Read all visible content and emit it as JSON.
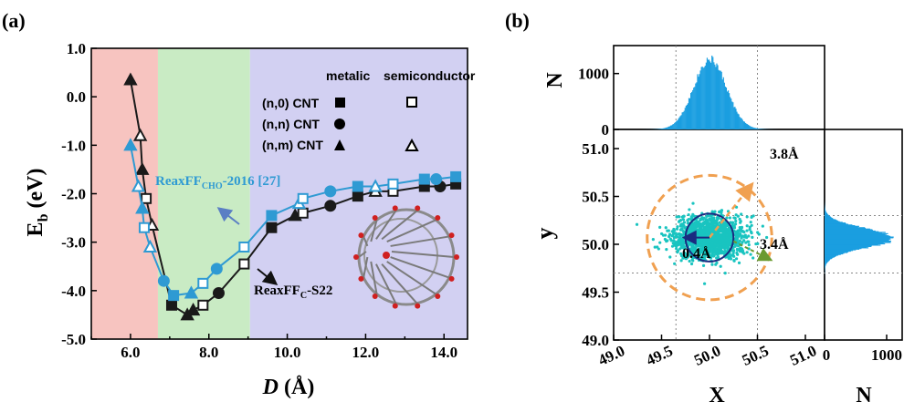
{
  "panel_a": {
    "tag": "(a)",
    "ylabel_main": "E",
    "ylabel_sub": "b",
    "ylabel_unit": " (eV)",
    "xlabel_italic": "D",
    "xlabel_unit": " (Å)",
    "legend": {
      "col_metallic": "metalic",
      "col_semiconductor": "semiconductor",
      "rows": [
        "(n,0) CNT",
        "(n,n) CNT",
        "(n,m) CNT"
      ]
    },
    "annotations": {
      "cho_main": "ReaxFF",
      "cho_sub": "CHO",
      "cho_rest": "-2016 [27]",
      "c_main": "ReaxFF",
      "c_sub": "C",
      "c_rest": "-S22"
    },
    "colors": {
      "region_red": "#f7c4c0",
      "region_green": "#c9ebc4",
      "region_blue": "#d2d0f2",
      "cho_series": "#2f9ad3",
      "c_series": "#1a1a1a",
      "cho_arrow": "#5b7fc4"
    }
  },
  "panel_b": {
    "tag": "(b)",
    "top_ylabel": "N",
    "main_ylabel": "y",
    "main_xlabel": "X",
    "right_xlabel": "N",
    "annotations": {
      "r_outer": "3.8Å",
      "r_inner": "0.4Å",
      "r_mid": "3.4Å"
    },
    "colors": {
      "scatter": "#19c4c0",
      "histogram": "#1a9ee0",
      "outer_circle": "#f0a050",
      "inner_circle": "#1a2a80",
      "green_arrow": "#6a9a30"
    }
  },
  "chart_data": [
    {
      "type": "line",
      "title": "",
      "xlabel": "D (Å)",
      "ylabel": "Eb (eV)",
      "xlim": [
        5.0,
        14.6
      ],
      "ylim": [
        -5.0,
        1.0
      ],
      "xticks": [
        "6.0",
        "8.0",
        "10.0",
        "12.0",
        "14.0"
      ],
      "yticks": [
        "1.0",
        "0.0",
        "-1.0",
        "-2.0",
        "-3.0",
        "-4.0",
        "-5.0"
      ],
      "regions": [
        {
          "x_from": 5.0,
          "x_to": 6.7,
          "color": "red"
        },
        {
          "x_from": 6.7,
          "x_to": 9.05,
          "color": "green"
        },
        {
          "x_from": 9.05,
          "x_to": 14.6,
          "color": "blue"
        }
      ],
      "series": [
        {
          "name": "ReaxFFC-S22",
          "points": [
            {
              "x": 6.0,
              "y": 0.35,
              "m": "tri_f"
            },
            {
              "x": 6.25,
              "y": -0.8,
              "m": "tri_o"
            },
            {
              "x": 6.3,
              "y": -1.5,
              "m": "tri_f"
            },
            {
              "x": 6.4,
              "y": -2.1,
              "m": "sq_o"
            },
            {
              "x": 6.55,
              "y": -2.65,
              "m": "tri_o"
            },
            {
              "x": 7.05,
              "y": -4.3,
              "m": "sq_f"
            },
            {
              "x": 7.45,
              "y": -4.5,
              "m": "tri_f"
            },
            {
              "x": 7.6,
              "y": -4.4,
              "m": "tri_f"
            },
            {
              "x": 7.85,
              "y": -4.3,
              "m": "sq_o"
            },
            {
              "x": 8.25,
              "y": -4.05,
              "m": "circ_f"
            },
            {
              "x": 8.9,
              "y": -3.45,
              "m": "sq_o"
            },
            {
              "x": 9.6,
              "y": -2.7,
              "m": "sq_f"
            },
            {
              "x": 10.2,
              "y": -2.45,
              "m": "tri_f"
            },
            {
              "x": 10.4,
              "y": -2.4,
              "m": "sq_o"
            },
            {
              "x": 11.1,
              "y": -2.25,
              "m": "circ_f"
            },
            {
              "x": 11.8,
              "y": -2.05,
              "m": "sq_f"
            },
            {
              "x": 12.25,
              "y": -1.95,
              "m": "tri_o"
            },
            {
              "x": 12.7,
              "y": -1.95,
              "m": "sq_o"
            },
            {
              "x": 13.5,
              "y": -1.85,
              "m": "sq_f"
            },
            {
              "x": 13.9,
              "y": -1.85,
              "m": "circ_f"
            },
            {
              "x": 14.3,
              "y": -1.8,
              "m": "sq_f"
            }
          ]
        },
        {
          "name": "ReaxFFCHO-2016 [27]",
          "points": [
            {
              "x": 6.0,
              "y": -1.0,
              "m": "tri_f"
            },
            {
              "x": 6.2,
              "y": -1.85,
              "m": "tri_o"
            },
            {
              "x": 6.3,
              "y": -2.3,
              "m": "tri_f"
            },
            {
              "x": 6.35,
              "y": -2.7,
              "m": "sq_o"
            },
            {
              "x": 6.5,
              "y": -3.1,
              "m": "tri_o"
            },
            {
              "x": 6.85,
              "y": -3.8,
              "m": "circ_f"
            },
            {
              "x": 7.1,
              "y": -4.1,
              "m": "sq_f"
            },
            {
              "x": 7.55,
              "y": -4.05,
              "m": "tri_f"
            },
            {
              "x": 7.85,
              "y": -3.85,
              "m": "sq_o"
            },
            {
              "x": 8.2,
              "y": -3.55,
              "m": "circ_f"
            },
            {
              "x": 8.9,
              "y": -3.1,
              "m": "sq_o"
            },
            {
              "x": 9.6,
              "y": -2.45,
              "m": "sq_f"
            },
            {
              "x": 10.3,
              "y": -2.2,
              "m": "tri_o"
            },
            {
              "x": 10.4,
              "y": -2.1,
              "m": "sq_o"
            },
            {
              "x": 11.1,
              "y": -1.95,
              "m": "circ_f"
            },
            {
              "x": 11.8,
              "y": -1.85,
              "m": "sq_f"
            },
            {
              "x": 12.25,
              "y": -1.85,
              "m": "tri_o"
            },
            {
              "x": 12.7,
              "y": -1.8,
              "m": "sq_o"
            },
            {
              "x": 13.5,
              "y": -1.7,
              "m": "sq_f"
            },
            {
              "x": 13.8,
              "y": -1.7,
              "m": "circ_f"
            },
            {
              "x": 14.3,
              "y": -1.65,
              "m": "sq_f"
            }
          ]
        }
      ]
    },
    {
      "type": "scatter",
      "xlabel": "X",
      "ylabel": "y",
      "xlim": [
        49.0,
        51.2
      ],
      "ylim": [
        49.0,
        51.2
      ],
      "xticks": [
        "49.0",
        "49.5",
        "50.0",
        "50.5",
        "51.0"
      ],
      "yticks": [
        "49.0",
        "49.5",
        "50.0",
        "50.5",
        "51.0"
      ],
      "center": {
        "x": 50.0,
        "y": 50.07
      },
      "spread_sd": {
        "x": 0.18,
        "y": 0.11
      },
      "dotted_grid_x": [
        49.65,
        50.5
      ],
      "dotted_grid_y": [
        49.7,
        50.3
      ],
      "circles": [
        {
          "label": "3.8Å",
          "radius_data": 0.65
        },
        {
          "label": "0.4Å",
          "radius_data": 0.25
        }
      ]
    },
    {
      "type": "bar",
      "name": "x-histogram",
      "ylabel": "N",
      "ylim": [
        0,
        1500
      ],
      "yticks": [
        "1000",
        "0"
      ],
      "peak": {
        "x": 50.0,
        "count": 1330
      },
      "sd": 0.17
    },
    {
      "type": "bar",
      "name": "y-histogram",
      "xlabel": "N",
      "xlim": [
        0,
        1250
      ],
      "xticks": [
        "0",
        "1000"
      ],
      "peak": {
        "y": 50.07,
        "count": 1190
      },
      "sd": 0.1
    }
  ]
}
